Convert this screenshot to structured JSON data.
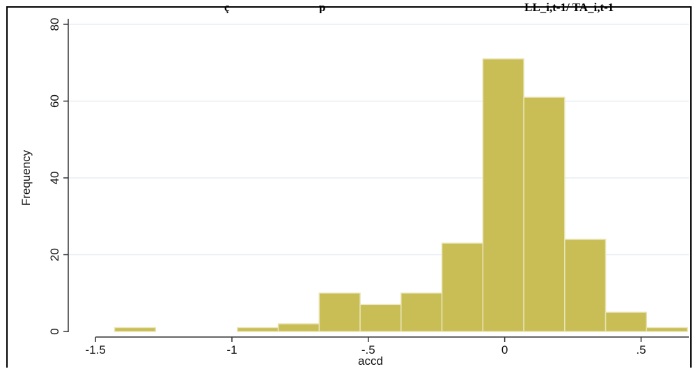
{
  "header_fragments": [
    "ç",
    "p",
    "LL_i,t-1/ TA_i,t-1"
  ],
  "colors": {
    "bar_fill": "#c8be55",
    "bar_stroke": "#e9e4b6",
    "plot_bg": "#ffffff",
    "grid": "#e8eef2",
    "axis": "#333333"
  },
  "chart_data": {
    "type": "histogram",
    "title": "",
    "xlabel": "accd",
    "ylabel": "Frequency",
    "xlim": [
      -1.5,
      0.65
    ],
    "ylim": [
      0,
      80
    ],
    "xticks": [
      -1.5,
      -1,
      -0.5,
      0,
      0.5
    ],
    "xtick_labels": [
      "-1.5",
      "-1",
      "-.5",
      "0",
      ".5"
    ],
    "yticks": [
      0,
      20,
      40,
      60,
      80
    ],
    "ytick_labels": [
      "0",
      "20",
      "40",
      "60",
      "80"
    ],
    "grid": true,
    "bins": [
      {
        "x0": -1.43,
        "x1": -1.28,
        "count": 1
      },
      {
        "x0": -0.98,
        "x1": -0.83,
        "count": 1
      },
      {
        "x0": -0.83,
        "x1": -0.68,
        "count": 2
      },
      {
        "x0": -0.68,
        "x1": -0.53,
        "count": 10
      },
      {
        "x0": -0.53,
        "x1": -0.38,
        "count": 7
      },
      {
        "x0": -0.38,
        "x1": -0.23,
        "count": 10
      },
      {
        "x0": -0.23,
        "x1": -0.08,
        "count": 23
      },
      {
        "x0": -0.08,
        "x1": 0.07,
        "count": 71
      },
      {
        "x0": 0.07,
        "x1": 0.22,
        "count": 61
      },
      {
        "x0": 0.22,
        "x1": 0.37,
        "count": 24
      },
      {
        "x0": 0.37,
        "x1": 0.52,
        "count": 5
      },
      {
        "x0": 0.52,
        "x1": 0.67,
        "count": 1
      }
    ]
  }
}
